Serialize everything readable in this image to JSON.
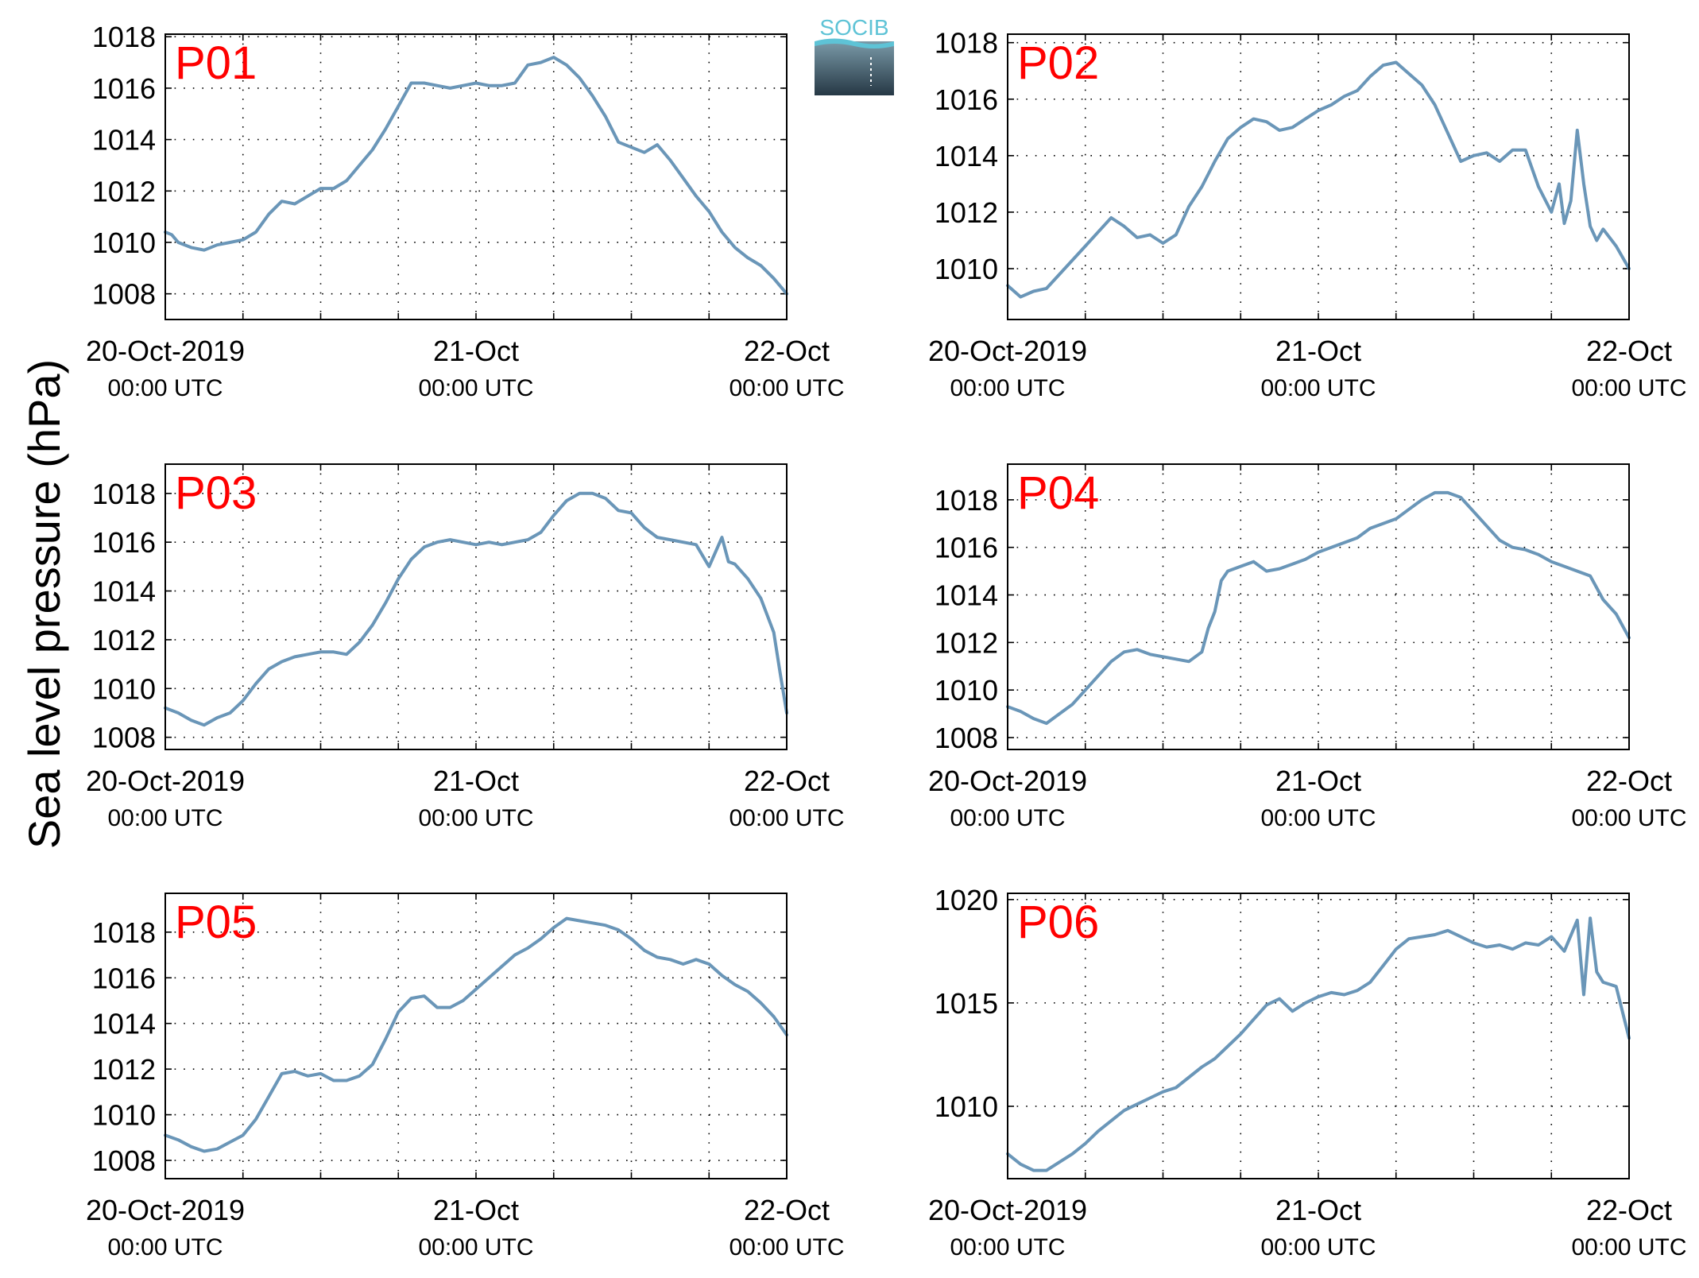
{
  "figure": {
    "ylabel": "Sea level pressure (hPa)",
    "logo_text": "SOCIB",
    "colors": {
      "line": "#6a96b8",
      "title": "#ff0000",
      "axes": "#000000",
      "grid": "#000000"
    }
  },
  "chart_data": [
    {
      "type": "line",
      "title": "P01",
      "x_ticks": [
        {
          "line1": "20-Oct-2019",
          "line2": "00:00 UTC"
        },
        {
          "line1": "21-Oct",
          "line2": "00:00 UTC"
        },
        {
          "line1": "22-Oct",
          "line2": "00:00 UTC"
        }
      ],
      "xlim": [
        0,
        48
      ],
      "ylim": [
        1007,
        1018.1
      ],
      "yticks": [
        1008,
        1010,
        1012,
        1014,
        1016,
        1018
      ],
      "grid": true,
      "x": [
        0,
        0.5,
        1,
        2,
        3,
        4,
        5,
        6,
        7,
        8,
        9,
        10,
        11,
        12,
        13,
        14,
        15,
        16,
        17,
        18,
        19,
        20,
        21,
        22,
        23,
        24,
        25,
        26,
        27,
        28,
        29,
        30,
        31,
        32,
        33,
        34,
        35,
        36,
        37,
        38,
        39,
        40,
        41,
        42,
        43,
        44,
        45,
        46,
        47,
        48
      ],
      "values": [
        1010.4,
        1010.3,
        1010.0,
        1009.8,
        1009.7,
        1009.9,
        1010.0,
        1010.1,
        1010.4,
        1011.1,
        1011.6,
        1011.5,
        1011.8,
        1012.1,
        1012.1,
        1012.4,
        1013.0,
        1013.6,
        1014.4,
        1015.3,
        1016.2,
        1016.2,
        1016.1,
        1016.0,
        1016.1,
        1016.2,
        1016.1,
        1016.1,
        1016.2,
        1016.9,
        1017.0,
        1017.2,
        1016.9,
        1016.4,
        1015.7,
        1014.9,
        1013.9,
        1013.7,
        1013.5,
        1013.8,
        1013.2,
        1012.5,
        1011.8,
        1011.2,
        1010.4,
        1009.8,
        1009.4,
        1009.1,
        1008.6,
        1008.0
      ]
    },
    {
      "type": "line",
      "title": "P02",
      "x_ticks": [
        {
          "line1": "20-Oct-2019",
          "line2": "00:00 UTC"
        },
        {
          "line1": "21-Oct",
          "line2": "00:00 UTC"
        },
        {
          "line1": "22-Oct",
          "line2": "00:00 UTC"
        }
      ],
      "xlim": [
        0,
        48
      ],
      "ylim": [
        1008.2,
        1018.3
      ],
      "yticks": [
        1010,
        1012,
        1014,
        1016,
        1018
      ],
      "grid": true,
      "x": [
        0,
        1,
        2,
        3,
        4,
        5,
        6,
        7,
        8,
        9,
        10,
        11,
        12,
        13,
        14,
        15,
        16,
        17,
        18,
        19,
        20,
        21,
        22,
        23,
        24,
        25,
        26,
        27,
        28,
        29,
        30,
        31,
        32,
        33,
        34,
        35,
        36,
        37,
        38,
        39,
        40,
        41,
        42,
        42.6,
        43,
        43.5,
        44,
        44.5,
        45,
        45.5,
        46,
        47,
        48
      ],
      "values": [
        1009.4,
        1009.0,
        1009.2,
        1009.3,
        1009.8,
        1010.3,
        1010.8,
        1011.3,
        1011.8,
        1011.5,
        1011.1,
        1011.2,
        1010.9,
        1011.2,
        1012.2,
        1012.9,
        1013.8,
        1014.6,
        1015.0,
        1015.3,
        1015.2,
        1014.9,
        1015.0,
        1015.3,
        1015.6,
        1015.8,
        1016.1,
        1016.3,
        1016.8,
        1017.2,
        1017.3,
        1016.9,
        1016.5,
        1015.8,
        1014.8,
        1013.8,
        1014.0,
        1014.1,
        1013.8,
        1014.2,
        1014.2,
        1012.9,
        1012.0,
        1013.0,
        1011.6,
        1012.4,
        1014.9,
        1013.0,
        1011.5,
        1011.0,
        1011.4,
        1010.8,
        1010.0
      ]
    },
    {
      "type": "line",
      "title": "P03",
      "x_ticks": [
        {
          "line1": "20-Oct-2019",
          "line2": "00:00 UTC"
        },
        {
          "line1": "21-Oct",
          "line2": "00:00 UTC"
        },
        {
          "line1": "22-Oct",
          "line2": "00:00 UTC"
        }
      ],
      "xlim": [
        0,
        48
      ],
      "ylim": [
        1007.5,
        1019.2
      ],
      "yticks": [
        1008,
        1010,
        1012,
        1014,
        1016,
        1018
      ],
      "grid": true,
      "x": [
        0,
        1,
        2,
        3,
        4,
        5,
        6,
        7,
        8,
        9,
        10,
        11,
        12,
        13,
        14,
        15,
        16,
        17,
        18,
        19,
        20,
        21,
        22,
        23,
        24,
        25,
        26,
        27,
        28,
        29,
        30,
        31,
        32,
        33,
        34,
        35,
        36,
        37,
        38,
        39,
        40,
        41,
        42,
        43,
        43.5,
        44,
        45,
        46,
        47,
        47.5,
        48
      ],
      "values": [
        1009.2,
        1009.0,
        1008.7,
        1008.5,
        1008.8,
        1009.0,
        1009.5,
        1010.2,
        1010.8,
        1011.1,
        1011.3,
        1011.4,
        1011.5,
        1011.5,
        1011.4,
        1011.9,
        1012.6,
        1013.5,
        1014.5,
        1015.3,
        1015.8,
        1016.0,
        1016.1,
        1016.0,
        1015.9,
        1016.0,
        1015.9,
        1016.0,
        1016.1,
        1016.4,
        1017.1,
        1017.7,
        1018.0,
        1018.0,
        1017.8,
        1017.3,
        1017.2,
        1016.6,
        1016.2,
        1016.1,
        1016.0,
        1015.9,
        1015.0,
        1016.2,
        1015.2,
        1015.1,
        1014.5,
        1013.7,
        1012.3,
        1010.6,
        1009.0
      ]
    },
    {
      "type": "line",
      "title": "P04",
      "x_ticks": [
        {
          "line1": "20-Oct-2019",
          "line2": "00:00 UTC"
        },
        {
          "line1": "21-Oct",
          "line2": "00:00 UTC"
        },
        {
          "line1": "22-Oct",
          "line2": "00:00 UTC"
        }
      ],
      "xlim": [
        0,
        48
      ],
      "ylim": [
        1007.5,
        1019.5
      ],
      "yticks": [
        1008,
        1010,
        1012,
        1014,
        1016,
        1018
      ],
      "grid": true,
      "x": [
        0,
        1,
        2,
        3,
        4,
        5,
        6,
        7,
        8,
        9,
        10,
        11,
        12,
        13,
        14,
        15,
        15.5,
        16,
        16.5,
        17,
        18,
        19,
        20,
        21,
        22,
        23,
        24,
        25,
        26,
        27,
        28,
        29,
        30,
        31,
        32,
        33,
        34,
        35,
        36,
        37,
        38,
        39,
        40,
        41,
        42,
        43,
        44,
        45,
        46,
        47,
        48
      ],
      "values": [
        1009.3,
        1009.1,
        1008.8,
        1008.6,
        1009.0,
        1009.4,
        1010.0,
        1010.6,
        1011.2,
        1011.6,
        1011.7,
        1011.5,
        1011.4,
        1011.3,
        1011.2,
        1011.6,
        1012.6,
        1013.3,
        1014.6,
        1015.0,
        1015.2,
        1015.4,
        1015.0,
        1015.1,
        1015.3,
        1015.5,
        1015.8,
        1016.0,
        1016.2,
        1016.4,
        1016.8,
        1017.0,
        1017.2,
        1017.6,
        1018.0,
        1018.3,
        1018.3,
        1018.1,
        1017.5,
        1016.9,
        1016.3,
        1016.0,
        1015.9,
        1015.7,
        1015.4,
        1015.2,
        1015.0,
        1014.8,
        1013.8,
        1013.2,
        1012.2
      ]
    },
    {
      "type": "line",
      "title": "P05",
      "x_ticks": [
        {
          "line1": "20-Oct-2019",
          "line2": "00:00 UTC"
        },
        {
          "line1": "21-Oct",
          "line2": "00:00 UTC"
        },
        {
          "line1": "22-Oct",
          "line2": "00:00 UTC"
        }
      ],
      "xlim": [
        0,
        48
      ],
      "ylim": [
        1007.2,
        1019.7
      ],
      "yticks": [
        1008,
        1010,
        1012,
        1014,
        1016,
        1018
      ],
      "grid": true,
      "x": [
        0,
        1,
        2,
        3,
        4,
        5,
        6,
        7,
        8,
        9,
        10,
        11,
        12,
        13,
        14,
        15,
        16,
        17,
        18,
        19,
        20,
        21,
        22,
        23,
        24,
        25,
        26,
        27,
        28,
        29,
        30,
        31,
        32,
        33,
        34,
        35,
        36,
        37,
        38,
        39,
        40,
        41,
        42,
        43,
        44,
        45,
        46,
        47,
        48
      ],
      "values": [
        1009.1,
        1008.9,
        1008.6,
        1008.4,
        1008.5,
        1008.8,
        1009.1,
        1009.8,
        1010.8,
        1011.8,
        1011.9,
        1011.7,
        1011.8,
        1011.5,
        1011.5,
        1011.7,
        1012.2,
        1013.3,
        1014.5,
        1015.1,
        1015.2,
        1014.7,
        1014.7,
        1015.0,
        1015.5,
        1016.0,
        1016.5,
        1017.0,
        1017.3,
        1017.7,
        1018.2,
        1018.6,
        1018.5,
        1018.4,
        1018.3,
        1018.1,
        1017.7,
        1017.2,
        1016.9,
        1016.8,
        1016.6,
        1016.8,
        1016.6,
        1016.1,
        1015.7,
        1015.4,
        1014.9,
        1014.3,
        1013.5
      ]
    },
    {
      "type": "line",
      "title": "P06",
      "x_ticks": [
        {
          "line1": "20-Oct-2019",
          "line2": "00:00 UTC"
        },
        {
          "line1": "21-Oct",
          "line2": "00:00 UTC"
        },
        {
          "line1": "22-Oct",
          "line2": "00:00 UTC"
        }
      ],
      "xlim": [
        0,
        48
      ],
      "ylim": [
        1006.5,
        1020.3
      ],
      "yticks": [
        1010,
        1015,
        1020
      ],
      "grid": true,
      "x": [
        0,
        1,
        2,
        3,
        4,
        5,
        6,
        7,
        8,
        9,
        10,
        11,
        12,
        13,
        14,
        15,
        16,
        17,
        18,
        19,
        20,
        21,
        22,
        23,
        24,
        25,
        26,
        27,
        28,
        29,
        30,
        31,
        32,
        33,
        34,
        35,
        36,
        37,
        38,
        39,
        40,
        41,
        42,
        43,
        44,
        44.5,
        45,
        45.5,
        46,
        47,
        48
      ],
      "values": [
        1007.7,
        1007.2,
        1006.9,
        1006.9,
        1007.3,
        1007.7,
        1008.2,
        1008.8,
        1009.3,
        1009.8,
        1010.1,
        1010.4,
        1010.7,
        1010.9,
        1011.4,
        1011.9,
        1012.3,
        1012.9,
        1013.5,
        1014.2,
        1014.9,
        1015.2,
        1014.6,
        1015.0,
        1015.3,
        1015.5,
        1015.4,
        1015.6,
        1016.0,
        1016.8,
        1017.6,
        1018.1,
        1018.2,
        1018.3,
        1018.5,
        1018.2,
        1017.9,
        1017.7,
        1017.8,
        1017.6,
        1017.9,
        1017.8,
        1018.2,
        1017.5,
        1019.0,
        1015.4,
        1019.1,
        1016.5,
        1016.0,
        1015.8,
        1013.3
      ]
    }
  ]
}
